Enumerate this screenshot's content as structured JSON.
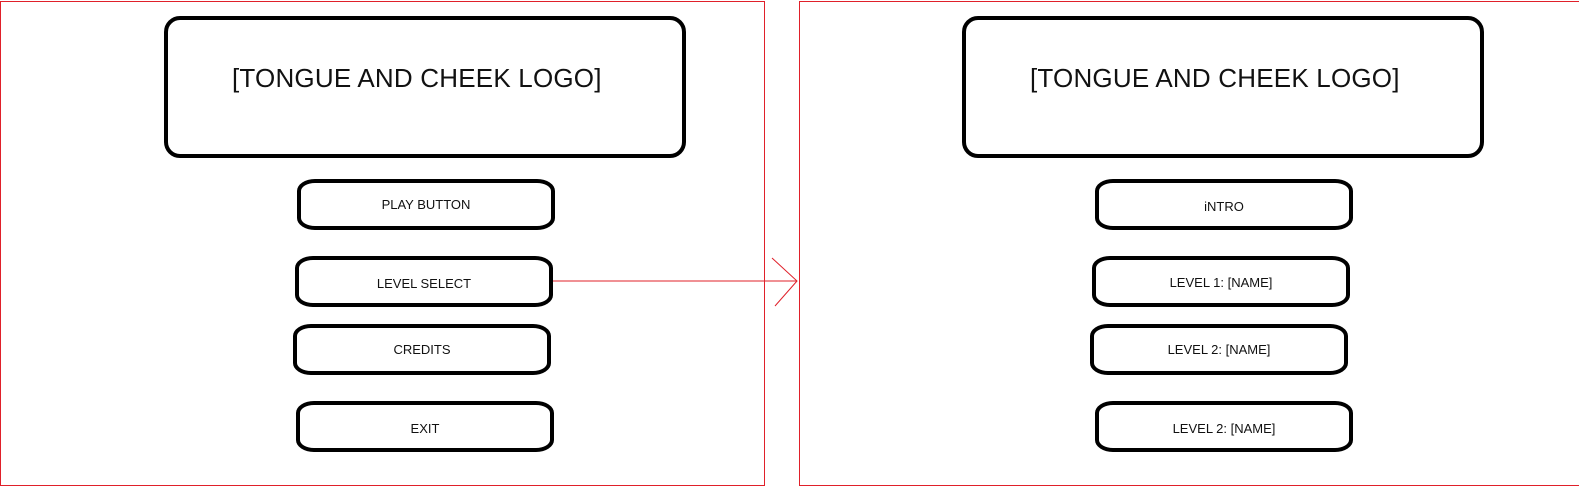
{
  "main_menu": {
    "logo": "[TONGUE AND CHEEK LOGO]",
    "buttons": [
      "PLAY BUTTON",
      "LEVEL SELECT",
      "CREDITS",
      "EXIT"
    ]
  },
  "level_select": {
    "logo": "[TONGUE AND CHEEK LOGO]",
    "buttons": [
      "iNTRO",
      "LEVEL 1: [NAME]",
      "LEVEL 2: [NAME]",
      "LEVEL 2: [NAME]"
    ]
  },
  "colors": {
    "frame": "#e0202a",
    "outline": "#000000",
    "arrow": "#e0202a"
  }
}
